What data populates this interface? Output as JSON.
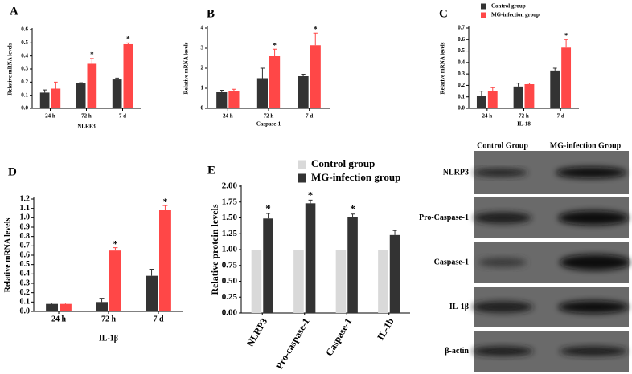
{
  "chart_data": [
    {
      "type": "bar",
      "panel": "A",
      "ylabel": "Relative mRNA levels",
      "xlabel": "NLRP3",
      "categories": [
        "24 h",
        "72 h",
        "7 d"
      ],
      "ylim": [
        0,
        0.6
      ],
      "yticks": [
        {
          "value": 0,
          "label": "0.0"
        },
        0.1,
        0.2,
        0.3,
        0.4,
        0.5,
        0.6
      ],
      "series": [
        {
          "name": "Control group",
          "color": "#333333",
          "values": [
            0.12,
            0.19,
            0.22
          ],
          "errors": [
            0.02,
            0.005,
            0.01
          ]
        },
        {
          "name": "MG-infection group",
          "color": "#ff4747",
          "values": [
            0.15,
            0.34,
            0.49
          ],
          "errors": [
            0.05,
            0.04,
            0.01
          ],
          "annotations": [
            null,
            "*",
            "*"
          ]
        }
      ]
    },
    {
      "type": "bar",
      "panel": "B",
      "ylabel": "Relative mRNA levels",
      "xlabel": "Caspase-1",
      "categories": [
        "24 h",
        "72 h",
        "7 d"
      ],
      "ylim": [
        0,
        4
      ],
      "yticks": [
        0,
        1,
        2,
        3,
        4
      ],
      "series": [
        {
          "name": "Control group",
          "color": "#333333",
          "values": [
            0.8,
            1.5,
            1.6
          ],
          "errors": [
            0.1,
            0.5,
            0.1
          ]
        },
        {
          "name": "MG-infection group",
          "color": "#ff4747",
          "values": [
            0.85,
            2.6,
            3.15
          ],
          "errors": [
            0.1,
            0.35,
            0.6
          ],
          "annotations": [
            null,
            "*",
            "*"
          ]
        }
      ]
    },
    {
      "type": "bar",
      "panel": "C",
      "ylabel": "Relative mRNA levels",
      "xlabel": "IL-18",
      "legend": "top-right",
      "categories": [
        "24 h",
        "72 h",
        "7 d"
      ],
      "ylim": [
        0,
        0.7
      ],
      "yticks": [
        {
          "value": 0,
          "label": "0.0"
        },
        0.1,
        0.2,
        0.3,
        0.4,
        0.5,
        0.6,
        0.7
      ],
      "series": [
        {
          "name": "Control group",
          "color": "#333333",
          "values": [
            0.11,
            0.19,
            0.33
          ],
          "errors": [
            0.04,
            0.03,
            0.02
          ]
        },
        {
          "name": "MG-infection group",
          "color": "#ff4747",
          "values": [
            0.15,
            0.21,
            0.53
          ],
          "errors": [
            0.03,
            0.01,
            0.07
          ],
          "annotations": [
            null,
            null,
            "*"
          ]
        }
      ]
    },
    {
      "type": "bar",
      "panel": "D",
      "ylabel": "Relative mRNA levels",
      "xlabel": "IL-1β",
      "categories": [
        "24 h",
        "72 h",
        "7 d"
      ],
      "ylim": [
        0,
        1.2
      ],
      "yticks": [
        {
          "value": 0,
          "label": "0.0"
        },
        0.1,
        0.2,
        0.3,
        0.4,
        0.5,
        0.6,
        0.7,
        0.8,
        0.9,
        {
          "value": 1,
          "label": "1.0"
        },
        1.1,
        1.2
      ],
      "series": [
        {
          "name": "Control group",
          "color": "#333333",
          "values": [
            0.08,
            0.1,
            0.38
          ],
          "errors": [
            0.01,
            0.04,
            0.07
          ]
        },
        {
          "name": "MG-infection group",
          "color": "#ff4747",
          "values": [
            0.08,
            0.65,
            1.08
          ],
          "errors": [
            0.01,
            0.03,
            0.05
          ],
          "annotations": [
            null,
            "*",
            "*"
          ]
        }
      ]
    },
    {
      "type": "bar",
      "panel": "E",
      "ylabel": "Relative protein levels",
      "legend": "top",
      "categories": [
        "NLRP3",
        "Pro-caspase-1",
        "Caspase-1",
        "IL-1b"
      ],
      "ylim": [
        0,
        2
      ],
      "yticks": [
        {
          "value": 0,
          "label": "0.00"
        },
        0.25,
        {
          "value": 0.5,
          "label": "0.50"
        },
        0.75,
        {
          "value": 1,
          "label": "1.00"
        },
        1.25,
        {
          "value": 1.5,
          "label": "1.50"
        },
        1.75,
        {
          "value": 2,
          "label": "2.00"
        }
      ],
      "series": [
        {
          "name": "Control group",
          "color": "#d9d9d9",
          "values": [
            1,
            1,
            1,
            1
          ]
        },
        {
          "name": "MG-infection group",
          "color": "#333333",
          "values": [
            1.49,
            1.73,
            1.51,
            1.23
          ],
          "errors": [
            0.08,
            0.05,
            0.05,
            0.07
          ],
          "annotations": [
            "*",
            "*",
            "*",
            null
          ]
        }
      ]
    }
  ],
  "blot": {
    "columns": [
      "Control  Group",
      "MG-infection  Group"
    ],
    "rows": [
      "NLRP3",
      "Pro-Caspase-1",
      "Caspase-1",
      "IL-1β",
      "β-actin"
    ]
  }
}
